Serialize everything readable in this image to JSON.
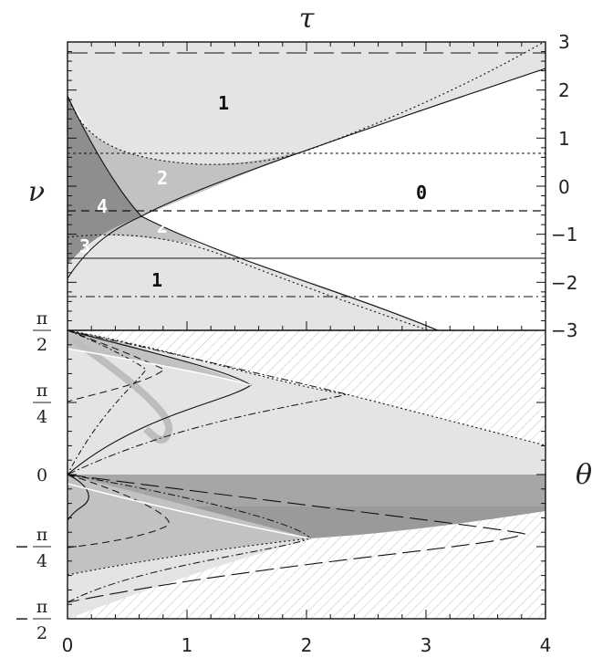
{
  "axis_titles": {
    "top": "τ",
    "left": "ν",
    "right": "θ"
  },
  "x_ticks": [
    "0",
    "1",
    "2",
    "3",
    "4"
  ],
  "right_ticks": [
    "3",
    "2",
    "1",
    "0",
    "−1",
    "−2",
    "−3"
  ],
  "left_ticks": [
    {
      "sign": "",
      "num": "π",
      "den": "2"
    },
    {
      "sign": "",
      "num": "π",
      "den": "4"
    },
    {
      "sign": "",
      "num": "0",
      "den": ""
    },
    {
      "sign": "−",
      "num": "π",
      "den": "4"
    },
    {
      "sign": "−",
      "num": "π",
      "den": "2"
    }
  ],
  "region_labels": [
    {
      "text": "1",
      "color": "#111111"
    },
    {
      "text": "0",
      "color": "#111111"
    },
    {
      "text": "2",
      "color": "#ffffff"
    },
    {
      "text": "4",
      "color": "#ffffff"
    },
    {
      "text": "2",
      "color": "#ffffff"
    },
    {
      "text": "3",
      "color": "#ffffff"
    },
    {
      "text": "1",
      "color": "#111111"
    }
  ],
  "colors": {
    "light": "#e4e4e4",
    "medium": "#c2c2c2",
    "dark": "#8e8e8e",
    "band": "#a6a6a8",
    "hatch": "#c8c8c8",
    "line": "#111111"
  }
}
